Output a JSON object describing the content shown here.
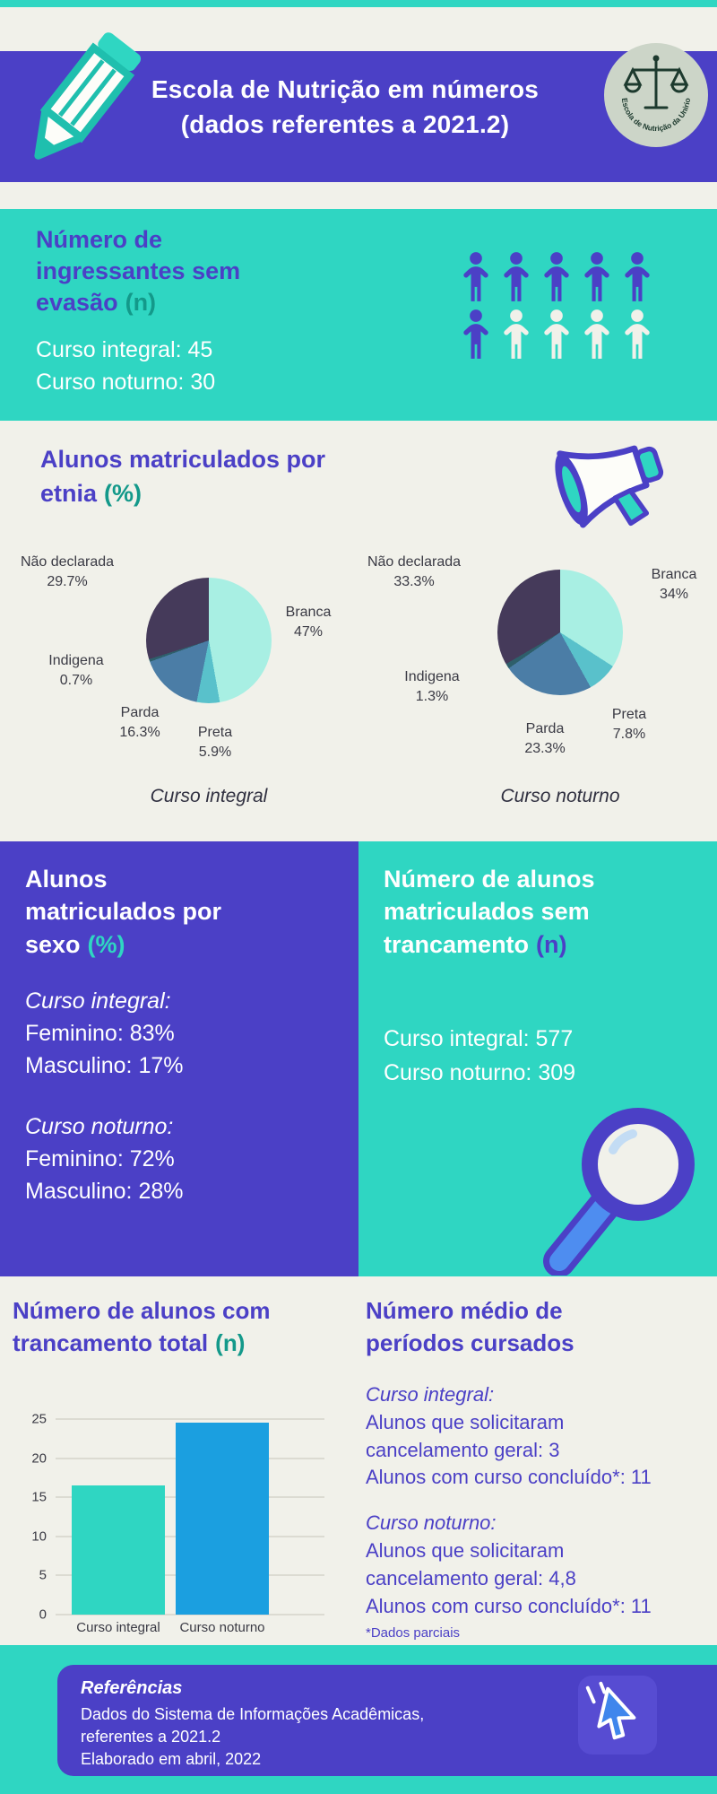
{
  "colors": {
    "purple": "#4b40c6",
    "teal": "#2fd6c2",
    "background": "#f1f1ea",
    "bar_blue": "#1b9fe0",
    "dark_text": "#3a3a44"
  },
  "header": {
    "title": "Escola de Nutrição em números\n(dados referentes a 2021.2)",
    "logo_text": "Escola de Nutrição da Unirio"
  },
  "ingressantes": {
    "heading_main": "Número de\ningressantes sem\nevasão",
    "heading_unit": "(n)",
    "stats": "Curso integral: 45\nCurso noturno: 30",
    "pictograph": [
      [
        "p",
        "p",
        "p",
        "p",
        "p"
      ],
      [
        "p",
        "w",
        "w",
        "w",
        "w"
      ]
    ]
  },
  "etnia": {
    "heading_main": "Alunos matriculados por\netnia",
    "heading_unit": "(%)"
  },
  "sexo": {
    "heading_main": "Alunos\nmatriculados por\nsexo",
    "heading_unit": "(%)",
    "blocks": [
      {
        "label": "Curso integral:",
        "text": "Feminino: 83%\nMasculino: 17%"
      },
      {
        "label": "Curso noturno:",
        "text": "Feminino: 72%\nMasculino: 28%"
      }
    ]
  },
  "sem_trancamento": {
    "heading_main": "Número de alunos\nmatriculados sem\ntrancamento",
    "heading_unit": "(n)",
    "stats": "Curso integral: 577\nCurso noturno: 309"
  },
  "trancamento_total": {
    "heading_main": "Número de alunos com\ntrancamento total",
    "heading_unit": "(n)"
  },
  "periodos": {
    "heading_main": "Número médio de\nperíodos cursados",
    "blocks": [
      {
        "label": "Curso integral:",
        "text": "Alunos que solicitaram\ncancelamento geral: 3\nAlunos com curso concluído*: 11"
      },
      {
        "label": "Curso noturno:",
        "text": "Alunos que solicitaram\ncancelamento geral: 4,8\nAlunos com curso concluído*: 11"
      }
    ],
    "footnote": "*Dados parciais"
  },
  "footer": {
    "title": "Referências",
    "text": "Dados do Sistema de Informações Acadêmicas,\nreferentes a 2021.2\nElaborado em abril, 2022"
  },
  "chart_data": [
    {
      "type": "pie",
      "title": "Curso integral",
      "labels": [
        "Branca",
        "Preta",
        "Parda",
        "Indigena",
        "Não declarada"
      ],
      "values": [
        47,
        5.9,
        16.3,
        0.7,
        29.7
      ],
      "pct_labels": [
        "47%",
        "5.9%",
        "16.3%",
        "0.7%",
        "29.7%"
      ],
      "colors": [
        "#a8efe3",
        "#59c1cb",
        "#4b7da6",
        "#2e5f6b",
        "#453a5a"
      ],
      "legend_position": "around"
    },
    {
      "type": "pie",
      "title": "Curso noturno",
      "labels": [
        "Branca",
        "Preta",
        "Parda",
        "Indigena",
        "Não declarada"
      ],
      "values": [
        34,
        7.8,
        23.3,
        1.3,
        33.3
      ],
      "pct_labels": [
        "34%",
        "7.8%",
        "23.3%",
        "1.3%",
        "33.3%"
      ],
      "colors": [
        "#a8efe3",
        "#59c1cb",
        "#4b7da6",
        "#2e5f6b",
        "#453a5a"
      ],
      "legend_position": "around"
    },
    {
      "type": "bar",
      "title": "Número de alunos com trancamento total (n)",
      "categories": [
        "Curso integral",
        "Curso noturno"
      ],
      "values": [
        16.5,
        24.5
      ],
      "colors": [
        "#2fd6c2",
        "#1b9fe0"
      ],
      "ylim": [
        0,
        25
      ],
      "yticks": [
        0,
        5,
        10,
        15,
        20,
        25
      ],
      "grid": true
    }
  ]
}
